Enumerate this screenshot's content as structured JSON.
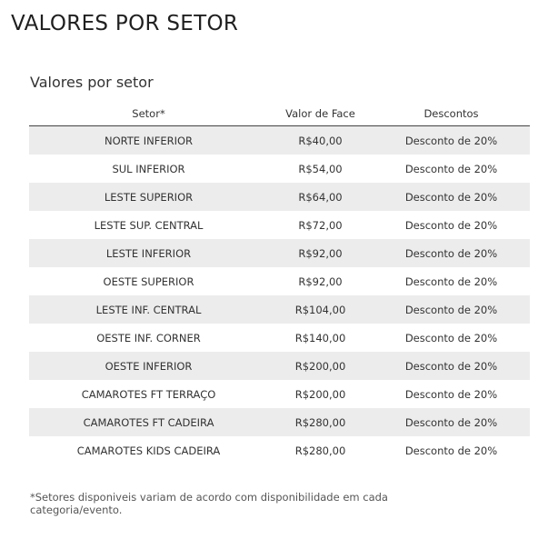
{
  "page": {
    "title": "VALORES POR SETOR"
  },
  "section": {
    "title": "Valores por setor"
  },
  "table": {
    "headers": {
      "sector": "Setor*",
      "face_value": "Valor de Face",
      "discounts": "Descontos"
    },
    "rows": [
      {
        "sector": "NORTE INFERIOR",
        "face_value": "R$40,00",
        "discount": "Desconto de 20%"
      },
      {
        "sector": "SUL INFERIOR",
        "face_value": "R$54,00",
        "discount": "Desconto de 20%"
      },
      {
        "sector": "LESTE SUPERIOR",
        "face_value": "R$64,00",
        "discount": "Desconto de 20%"
      },
      {
        "sector": "LESTE SUP. CENTRAL",
        "face_value": "R$72,00",
        "discount": "Desconto de 20%"
      },
      {
        "sector": "LESTE INFERIOR",
        "face_value": "R$92,00",
        "discount": "Desconto de 20%"
      },
      {
        "sector": "OESTE SUPERIOR",
        "face_value": "R$92,00",
        "discount": "Desconto de 20%"
      },
      {
        "sector": "LESTE INF. CENTRAL",
        "face_value": "R$104,00",
        "discount": "Desconto de 20%"
      },
      {
        "sector": "OESTE INF. CORNER",
        "face_value": "R$140,00",
        "discount": "Desconto de 20%"
      },
      {
        "sector": "OESTE INFERIOR",
        "face_value": "R$200,00",
        "discount": "Desconto de 20%"
      },
      {
        "sector": "CAMAROTES FT TERRAÇO",
        "face_value": "R$200,00",
        "discount": "Desconto de 20%"
      },
      {
        "sector": "CAMAROTES FT CADEIRA",
        "face_value": "R$280,00",
        "discount": "Desconto de 20%"
      },
      {
        "sector": "CAMAROTES KIDS CADEIRA",
        "face_value": "R$280,00",
        "discount": "Desconto de 20%"
      }
    ]
  },
  "footnote": "*Setores disponiveis variam de acordo com disponibilidade em cada categoria/evento."
}
